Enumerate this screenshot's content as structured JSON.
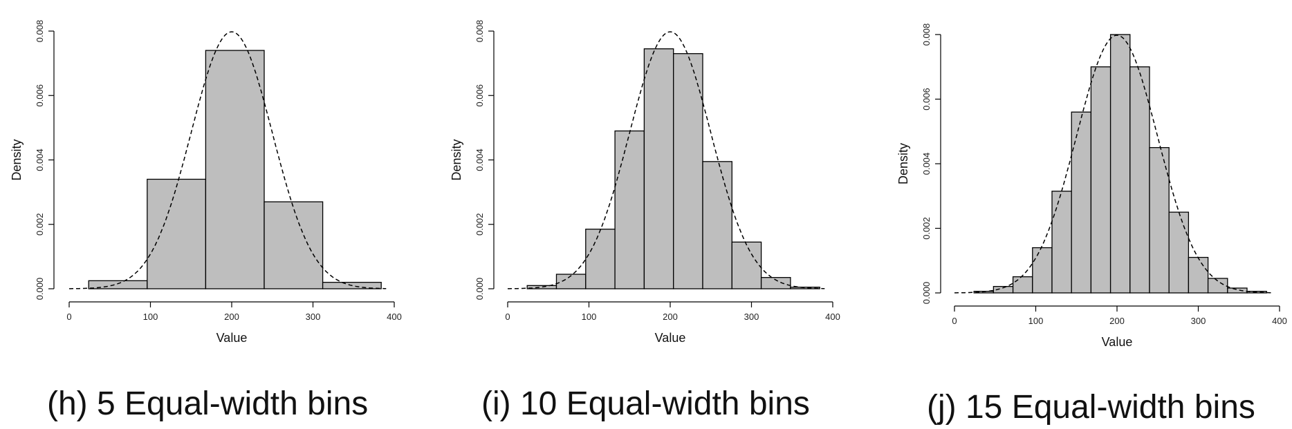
{
  "chart_data": [
    {
      "type": "bar",
      "caption": "(h) 5 Equal-width bins",
      "xlabel": "Value",
      "ylabel": "Density",
      "xlim": [
        0,
        400
      ],
      "ylim": [
        0,
        0.008
      ],
      "xticks": [
        0,
        100,
        200,
        300,
        400
      ],
      "yticks": [
        "0.000",
        "0.002",
        "0.004",
        "0.006",
        "0.008"
      ],
      "bin_edges": [
        24,
        96,
        168,
        240,
        312,
        384
      ],
      "values": [
        0.00025,
        0.0034,
        0.0074,
        0.0027,
        0.0002
      ],
      "density_curve": {
        "style": "dashed",
        "mean": 200,
        "sd": 50
      }
    },
    {
      "type": "bar",
      "caption": "(i) 10 Equal-width bins",
      "xlabel": "Value",
      "ylabel": "Density",
      "xlim": [
        0,
        400
      ],
      "ylim": [
        0,
        0.008
      ],
      "xticks": [
        0,
        100,
        200,
        300,
        400
      ],
      "yticks": [
        "0.000",
        "0.002",
        "0.004",
        "0.006",
        "0.008"
      ],
      "bin_edges": [
        24,
        60,
        96,
        132,
        168,
        204,
        240,
        276,
        312,
        348,
        384
      ],
      "values": [
        0.0001,
        0.00045,
        0.00185,
        0.0049,
        0.00745,
        0.0073,
        0.00395,
        0.00145,
        0.00035,
        5e-05
      ],
      "density_curve": {
        "style": "dashed",
        "mean": 200,
        "sd": 50
      }
    },
    {
      "type": "bar",
      "caption": "(j) 15 Equal-width bins",
      "xlabel": "Value",
      "ylabel": "Density",
      "xlim": [
        0,
        400
      ],
      "ylim": [
        0,
        0.008
      ],
      "xticks": [
        0,
        100,
        200,
        300,
        400
      ],
      "yticks": [
        "0.000",
        "0.002",
        "0.004",
        "0.006",
        "0.008"
      ],
      "bin_edges": [
        24,
        48,
        72,
        96,
        120,
        144,
        168,
        192,
        216,
        240,
        264,
        288,
        312,
        336,
        360,
        384
      ],
      "values": [
        5e-05,
        0.0002,
        0.0005,
        0.0014,
        0.00315,
        0.0056,
        0.007,
        0.008,
        0.007,
        0.0045,
        0.0025,
        0.0011,
        0.00045,
        0.00015,
        5e-05
      ],
      "density_curve": {
        "style": "dashed",
        "mean": 200,
        "sd": 50
      }
    }
  ]
}
